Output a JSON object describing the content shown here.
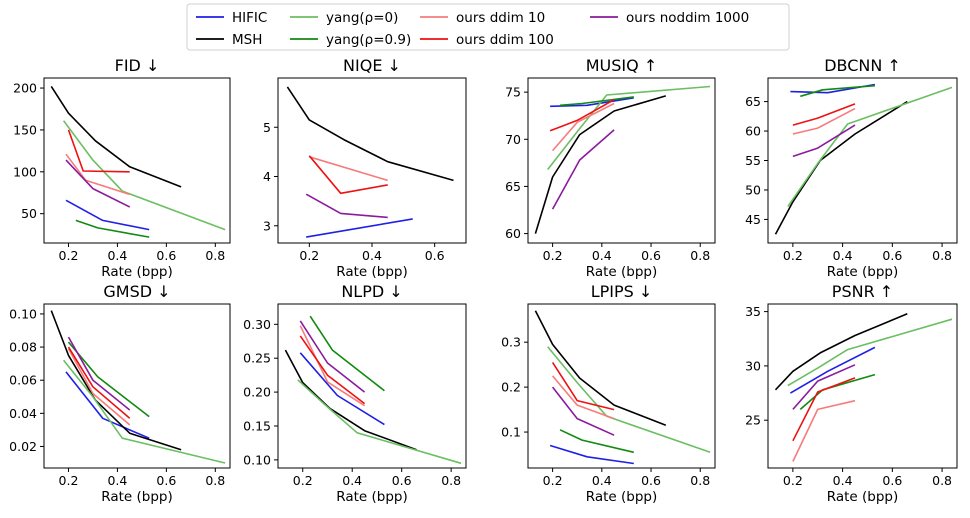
{
  "legend": {
    "location": "top-center",
    "entries": [
      {
        "label": "HIFIC",
        "color": "#1f1fe8"
      },
      {
        "label": "MSH",
        "color": "#000000"
      },
      {
        "label": "yang(ρ=0)",
        "color": "#6abf62"
      },
      {
        "label": "yang(ρ=0.9)",
        "color": "#118a11"
      },
      {
        "label": "ours ddim 10",
        "color": "#f77b7b"
      },
      {
        "label": "ours ddim 100",
        "color": "#ee1111"
      },
      {
        "label": "ours noddim 1000",
        "color": "#8b1a9e"
      }
    ]
  },
  "chart_data": [
    {
      "type": "line",
      "title": "FID ↓",
      "xlabel": "Rate (bpp)",
      "ylabel": "",
      "xlim": [
        0.1,
        0.86
      ],
      "ylim": [
        15,
        212
      ],
      "xticks": [
        0.2,
        0.4,
        0.6,
        0.8
      ],
      "xtick_labels": [
        "0.2",
        "0.4",
        "0.6",
        "0.8"
      ],
      "yticks": [
        50,
        100,
        150,
        200
      ],
      "ytick_labels": [
        "50",
        "100",
        "150",
        "200"
      ],
      "series": [
        {
          "name": "HIFIC",
          "x": [
            0.19,
            0.34,
            0.53
          ],
          "y": [
            66,
            42,
            31
          ]
        },
        {
          "name": "MSH",
          "x": [
            0.13,
            0.2,
            0.31,
            0.45,
            0.66
          ],
          "y": [
            202,
            170,
            137,
            106,
            82
          ]
        },
        {
          "name": "yang(ρ=0)",
          "x": [
            0.18,
            0.3,
            0.42,
            0.84
          ],
          "y": [
            161,
            114,
            77,
            31
          ]
        },
        {
          "name": "yang(ρ=0.9)",
          "x": [
            0.23,
            0.32,
            0.53
          ],
          "y": [
            42,
            33,
            22
          ]
        },
        {
          "name": "ours ddim 10",
          "x": [
            0.19,
            0.27,
            0.45
          ],
          "y": [
            121,
            90,
            73
          ]
        },
        {
          "name": "ours ddim 100",
          "x": [
            0.2,
            0.26,
            0.45
          ],
          "y": [
            150,
            101,
            100
          ]
        },
        {
          "name": "ours noddim 1000",
          "x": [
            0.19,
            0.3,
            0.45
          ],
          "y": [
            114,
            80,
            58
          ]
        }
      ]
    },
    {
      "type": "line",
      "title": "NIQE ↓",
      "xlabel": "Rate (bpp)",
      "ylabel": "",
      "xlim": [
        0.1,
        0.7
      ],
      "ylim": [
        2.65,
        6.0
      ],
      "xticks": [
        0.2,
        0.4,
        0.6
      ],
      "xtick_labels": [
        "0.2",
        "0.4",
        "0.6"
      ],
      "yticks": [
        3,
        4,
        5
      ],
      "ytick_labels": [
        "3",
        "4",
        "5"
      ],
      "series": [
        {
          "name": "HIFIC",
          "x": [
            0.19,
            0.53
          ],
          "y": [
            2.77,
            3.14
          ]
        },
        {
          "name": "MSH",
          "x": [
            0.13,
            0.2,
            0.31,
            0.45,
            0.66
          ],
          "y": [
            5.82,
            5.15,
            4.75,
            4.3,
            3.92
          ]
        },
        {
          "name": "ours ddim 10",
          "x": [
            0.2,
            0.45
          ],
          "y": [
            4.4,
            3.92
          ]
        },
        {
          "name": "ours ddim 100",
          "x": [
            0.2,
            0.3,
            0.45
          ],
          "y": [
            4.42,
            3.66,
            3.83
          ]
        },
        {
          "name": "ours noddim 1000",
          "x": [
            0.19,
            0.3,
            0.45
          ],
          "y": [
            3.64,
            3.25,
            3.17
          ]
        }
      ]
    },
    {
      "type": "line",
      "title": "MUSIQ ↑",
      "xlabel": "Rate (bpp)",
      "ylabel": "",
      "xlim": [
        0.1,
        0.86
      ],
      "ylim": [
        59,
        76.5
      ],
      "xticks": [
        0.2,
        0.4,
        0.6,
        0.8
      ],
      "xtick_labels": [
        "0.2",
        "0.4",
        "0.6",
        "0.8"
      ],
      "yticks": [
        60,
        65,
        70,
        75
      ],
      "ytick_labels": [
        "60",
        "65",
        "70",
        "75"
      ],
      "series": [
        {
          "name": "HIFIC",
          "x": [
            0.19,
            0.34,
            0.53
          ],
          "y": [
            73.5,
            73.6,
            74.4
          ]
        },
        {
          "name": "MSH",
          "x": [
            0.13,
            0.2,
            0.31,
            0.45,
            0.66
          ],
          "y": [
            60,
            66,
            70.5,
            73,
            74.6
          ]
        },
        {
          "name": "yang(ρ=0)",
          "x": [
            0.18,
            0.3,
            0.42,
            0.84
          ],
          "y": [
            66.8,
            70.8,
            74.7,
            75.6
          ]
        },
        {
          "name": "yang(ρ=0.9)",
          "x": [
            0.23,
            0.32,
            0.53
          ],
          "y": [
            73.6,
            73.8,
            74.5
          ]
        },
        {
          "name": "ours ddim 10",
          "x": [
            0.2,
            0.3,
            0.45
          ],
          "y": [
            68.8,
            71.8,
            73.8
          ]
        },
        {
          "name": "ours ddim 100",
          "x": [
            0.19,
            0.3,
            0.45
          ],
          "y": [
            70.9,
            72,
            74.2
          ]
        },
        {
          "name": "ours noddim 1000",
          "x": [
            0.2,
            0.31,
            0.45
          ],
          "y": [
            62.6,
            67.8,
            71
          ]
        }
      ]
    },
    {
      "type": "line",
      "title": "DBCNN ↑",
      "xlabel": "Rate (bpp)",
      "ylabel": "",
      "xlim": [
        0.1,
        0.86
      ],
      "ylim": [
        41,
        69
      ],
      "xticks": [
        0.2,
        0.4,
        0.6,
        0.8
      ],
      "xtick_labels": [
        "0.2",
        "0.4",
        "0.6",
        "0.8"
      ],
      "yticks": [
        45,
        50,
        55,
        60,
        65
      ],
      "ytick_labels": [
        "45",
        "50",
        "55",
        "60",
        "65"
      ],
      "series": [
        {
          "name": "HIFIC",
          "x": [
            0.19,
            0.34,
            0.53
          ],
          "y": [
            66.7,
            66.5,
            67.9
          ]
        },
        {
          "name": "MSH",
          "x": [
            0.13,
            0.2,
            0.31,
            0.45,
            0.66
          ],
          "y": [
            42.5,
            48,
            55,
            59.5,
            65
          ]
        },
        {
          "name": "yang(ρ=0)",
          "x": [
            0.18,
            0.3,
            0.42,
            0.84
          ],
          "y": [
            47.2,
            54.5,
            61.2,
            67.4
          ]
        },
        {
          "name": "yang(ρ=0.9)",
          "x": [
            0.23,
            0.32,
            0.53
          ],
          "y": [
            65.9,
            67,
            67.7
          ]
        },
        {
          "name": "ours ddim 10",
          "x": [
            0.2,
            0.3,
            0.45
          ],
          "y": [
            59.5,
            60.5,
            63.8
          ]
        },
        {
          "name": "ours ddim 100",
          "x": [
            0.2,
            0.3,
            0.45
          ],
          "y": [
            61,
            62.2,
            64.6
          ]
        },
        {
          "name": "ours noddim 1000",
          "x": [
            0.2,
            0.3,
            0.45
          ],
          "y": [
            55.7,
            57.1,
            61
          ]
        }
      ]
    },
    {
      "type": "line",
      "title": "GMSD ↓",
      "xlabel": "Rate (bpp)",
      "ylabel": "",
      "xlim": [
        0.1,
        0.86
      ],
      "ylim": [
        0.007,
        0.106
      ],
      "xticks": [
        0.2,
        0.4,
        0.6,
        0.8
      ],
      "xtick_labels": [
        "0.2",
        "0.4",
        "0.6",
        "0.8"
      ],
      "yticks": [
        0.02,
        0.04,
        0.06,
        0.08,
        0.1
      ],
      "ytick_labels": [
        "0.02",
        "0.04",
        "0.06",
        "0.08",
        "0.10"
      ],
      "series": [
        {
          "name": "HIFIC",
          "x": [
            0.19,
            0.34,
            0.53
          ],
          "y": [
            0.065,
            0.037,
            0.025
          ]
        },
        {
          "name": "MSH",
          "x": [
            0.13,
            0.2,
            0.31,
            0.45,
            0.66
          ],
          "y": [
            0.102,
            0.075,
            0.048,
            0.028,
            0.018
          ]
        },
        {
          "name": "yang(ρ=0)",
          "x": [
            0.18,
            0.3,
            0.42,
            0.84
          ],
          "y": [
            0.072,
            0.05,
            0.025,
            0.01
          ]
        },
        {
          "name": "yang(ρ=0.9)",
          "x": [
            0.2,
            0.32,
            0.53
          ],
          "y": [
            0.083,
            0.062,
            0.038
          ]
        },
        {
          "name": "ours ddim 10",
          "x": [
            0.2,
            0.3,
            0.45
          ],
          "y": [
            0.079,
            0.052,
            0.033
          ]
        },
        {
          "name": "ours ddim 100",
          "x": [
            0.2,
            0.3,
            0.45
          ],
          "y": [
            0.08,
            0.056,
            0.037
          ]
        },
        {
          "name": "ours noddim 1000",
          "x": [
            0.2,
            0.3,
            0.45
          ],
          "y": [
            0.086,
            0.06,
            0.042
          ]
        }
      ]
    },
    {
      "type": "line",
      "title": "NLPD ↓",
      "xlabel": "Rate (bpp)",
      "ylabel": "",
      "xlim": [
        0.1,
        0.86
      ],
      "ylim": [
        0.088,
        0.33
      ],
      "xticks": [
        0.2,
        0.4,
        0.6,
        0.8
      ],
      "xtick_labels": [
        "0.2",
        "0.4",
        "0.6",
        "0.8"
      ],
      "yticks": [
        0.1,
        0.15,
        0.2,
        0.25,
        0.3
      ],
      "ytick_labels": [
        "0.10",
        "0.15",
        "0.20",
        "0.25",
        "0.30"
      ],
      "series": [
        {
          "name": "HIFIC",
          "x": [
            0.19,
            0.34,
            0.53
          ],
          "y": [
            0.258,
            0.195,
            0.152
          ]
        },
        {
          "name": "MSH",
          "x": [
            0.13,
            0.2,
            0.31,
            0.45,
            0.66
          ],
          "y": [
            0.262,
            0.214,
            0.176,
            0.143,
            0.115
          ]
        },
        {
          "name": "yang(ρ=0)",
          "x": [
            0.18,
            0.3,
            0.42,
            0.84
          ],
          "y": [
            0.218,
            0.178,
            0.14,
            0.095
          ]
        },
        {
          "name": "yang(ρ=0.9)",
          "x": [
            0.23,
            0.32,
            0.53
          ],
          "y": [
            0.312,
            0.262,
            0.202
          ]
        },
        {
          "name": "ours ddim 10",
          "x": [
            0.19,
            0.3,
            0.45
          ],
          "y": [
            0.298,
            0.215,
            0.18
          ]
        },
        {
          "name": "ours ddim 100",
          "x": [
            0.19,
            0.3,
            0.45
          ],
          "y": [
            0.283,
            0.225,
            0.183
          ]
        },
        {
          "name": "ours noddim 1000",
          "x": [
            0.19,
            0.3,
            0.45
          ],
          "y": [
            0.305,
            0.243,
            0.2
          ]
        }
      ]
    },
    {
      "type": "line",
      "title": "LPIPS ↓",
      "xlabel": "Rate (bpp)",
      "ylabel": "",
      "xlim": [
        0.1,
        0.86
      ],
      "ylim": [
        0.02,
        0.385
      ],
      "xticks": [
        0.2,
        0.4,
        0.6,
        0.8
      ],
      "xtick_labels": [
        "0.2",
        "0.4",
        "0.6",
        "0.8"
      ],
      "yticks": [
        0.1,
        0.2,
        0.3
      ],
      "ytick_labels": [
        "0.1",
        "0.2",
        "0.3"
      ],
      "series": [
        {
          "name": "HIFIC",
          "x": [
            0.19,
            0.34,
            0.53
          ],
          "y": [
            0.07,
            0.045,
            0.03
          ]
        },
        {
          "name": "MSH",
          "x": [
            0.13,
            0.2,
            0.31,
            0.45,
            0.66
          ],
          "y": [
            0.37,
            0.295,
            0.22,
            0.16,
            0.115
          ]
        },
        {
          "name": "yang(ρ=0)",
          "x": [
            0.18,
            0.3,
            0.42,
            0.84
          ],
          "y": [
            0.29,
            0.21,
            0.135,
            0.055
          ]
        },
        {
          "name": "yang(ρ=0.9)",
          "x": [
            0.23,
            0.32,
            0.53
          ],
          "y": [
            0.105,
            0.082,
            0.055
          ]
        },
        {
          "name": "ours ddim 10",
          "x": [
            0.2,
            0.3,
            0.45
          ],
          "y": [
            0.225,
            0.16,
            0.13
          ]
        },
        {
          "name": "ours ddim 100",
          "x": [
            0.2,
            0.3,
            0.45
          ],
          "y": [
            0.255,
            0.17,
            0.15
          ]
        },
        {
          "name": "ours noddim 1000",
          "x": [
            0.2,
            0.3,
            0.45
          ],
          "y": [
            0.2,
            0.13,
            0.093
          ]
        }
      ]
    },
    {
      "type": "line",
      "title": "PSNR ↑",
      "xlabel": "Rate (bpp)",
      "ylabel": "",
      "xlim": [
        0.1,
        0.86
      ],
      "ylim": [
        20.6,
        35.7
      ],
      "xticks": [
        0.2,
        0.4,
        0.6,
        0.8
      ],
      "xtick_labels": [
        "0.2",
        "0.4",
        "0.6",
        "0.8"
      ],
      "yticks": [
        25,
        30,
        35
      ],
      "ytick_labels": [
        "25",
        "30",
        "35"
      ],
      "series": [
        {
          "name": "HIFIC",
          "x": [
            0.19,
            0.34,
            0.53
          ],
          "y": [
            27.5,
            29.5,
            31.7
          ]
        },
        {
          "name": "MSH",
          "x": [
            0.13,
            0.2,
            0.31,
            0.45,
            0.66
          ],
          "y": [
            27.8,
            29.5,
            31.2,
            32.8,
            34.8
          ]
        },
        {
          "name": "yang(ρ=0)",
          "x": [
            0.18,
            0.3,
            0.42,
            0.84
          ],
          "y": [
            28.2,
            29.8,
            31.5,
            34.3
          ]
        },
        {
          "name": "yang(ρ=0.9)",
          "x": [
            0.23,
            0.32,
            0.53
          ],
          "y": [
            26,
            27.8,
            29.2
          ]
        },
        {
          "name": "ours ddim 10",
          "x": [
            0.2,
            0.3,
            0.45
          ],
          "y": [
            21.2,
            26,
            26.8
          ]
        },
        {
          "name": "ours ddim 100",
          "x": [
            0.2,
            0.3,
            0.45
          ],
          "y": [
            23.1,
            27.6,
            28.9
          ]
        },
        {
          "name": "ours noddim 1000",
          "x": [
            0.2,
            0.3,
            0.45
          ],
          "y": [
            26,
            28.6,
            30.1
          ]
        }
      ]
    }
  ]
}
